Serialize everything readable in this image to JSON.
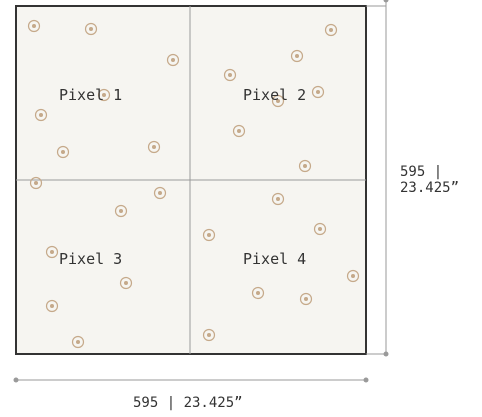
{
  "figure": {
    "background_color": "#f6f5f1",
    "border_color": "#333333",
    "grid_line_color": "#9a9a9a",
    "dimension_line_color": "#9a9a9a",
    "marker_color": "#c5a98a",
    "pixels": [
      {
        "label": "Pixel 1"
      },
      {
        "label": "Pixel 2"
      },
      {
        "label": "Pixel 3"
      },
      {
        "label": "Pixel 4"
      }
    ],
    "dimensions": {
      "width_label": "595 | 23.425”",
      "height_label_line1": "595 |",
      "height_label_line2": "23.425”"
    }
  }
}
